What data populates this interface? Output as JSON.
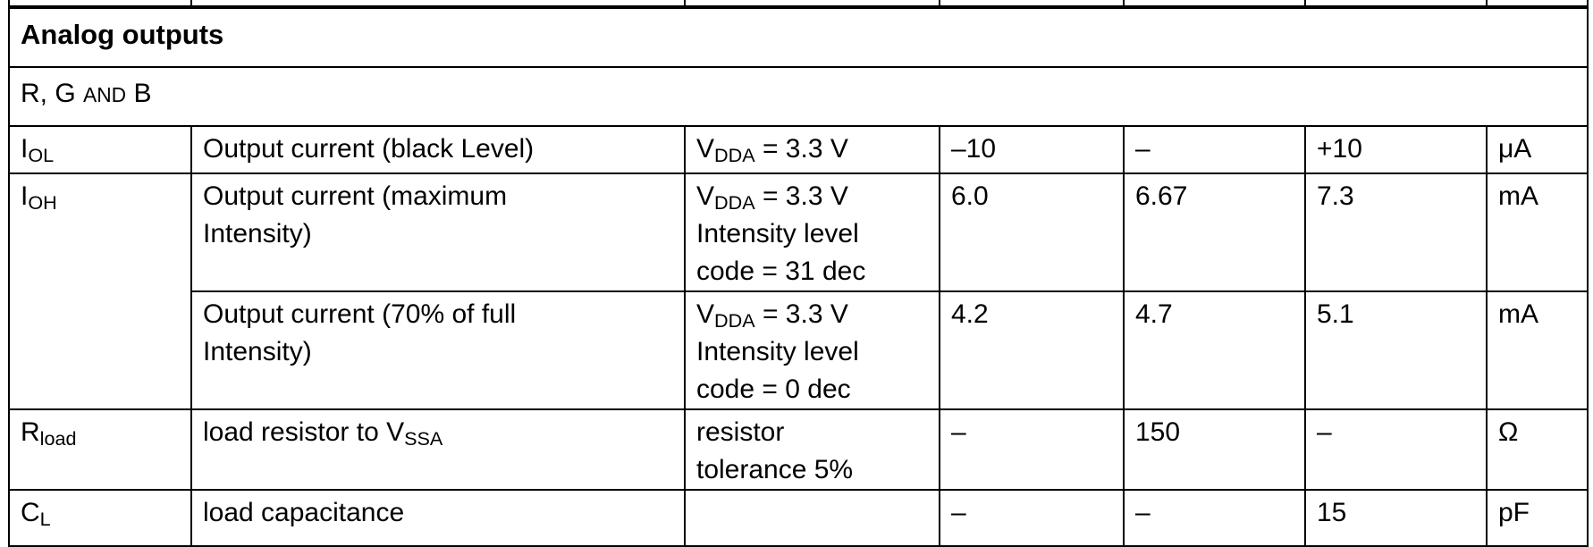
{
  "section": {
    "title": "Analog outputs"
  },
  "subsection": {
    "label": [
      [
        {
          "t": "R, G "
        },
        {
          "t": "AND",
          "sc": true
        },
        {
          "t": " B"
        }
      ]
    ]
  },
  "rows": {
    "iol": {
      "symbol": [
        [
          {
            "t": "I"
          },
          {
            "t": "OL",
            "sub": true
          }
        ]
      ],
      "parameter": [
        [
          {
            "t": "Output current (black Level)"
          }
        ]
      ],
      "conditions": [
        [
          {
            "t": "V"
          },
          {
            "t": "DDA",
            "sub": true
          },
          {
            "t": " = 3.3 V"
          }
        ]
      ],
      "min": "–10",
      "typ": "–",
      "max": "+10",
      "unit": "μA"
    },
    "ioh1": {
      "symbol": [
        [
          {
            "t": "I"
          },
          {
            "t": "OH",
            "sub": true
          }
        ]
      ],
      "parameter": [
        [
          {
            "t": "Output current (maximum"
          }
        ],
        [
          {
            "t": "Intensity)"
          }
        ]
      ],
      "conditions": [
        [
          {
            "t": "V"
          },
          {
            "t": "DDA",
            "sub": true
          },
          {
            "t": " = 3.3 V"
          }
        ],
        [
          {
            "t": "Intensity level"
          }
        ],
        [
          {
            "t": "code = 31 dec"
          }
        ]
      ],
      "min": "6.0",
      "typ": "6.67",
      "max": "7.3",
      "unit": "mA"
    },
    "ioh2": {
      "parameter": [
        [
          {
            "t": "Output current (70% of full"
          }
        ],
        [
          {
            "t": "Intensity)"
          }
        ]
      ],
      "conditions": [
        [
          {
            "t": "V"
          },
          {
            "t": "DDA",
            "sub": true
          },
          {
            "t": " = 3.3 V"
          }
        ],
        [
          {
            "t": "Intensity level"
          }
        ],
        [
          {
            "t": "code = 0 dec"
          }
        ]
      ],
      "min": "4.2",
      "typ": "4.7",
      "max": "5.1",
      "unit": "mA"
    },
    "rload": {
      "symbol": [
        [
          {
            "t": "R"
          },
          {
            "t": "load",
            "sub": true
          }
        ]
      ],
      "parameter": [
        [
          {
            "t": "load resistor to V"
          },
          {
            "t": "SSA",
            "sub": true
          }
        ]
      ],
      "conditions": [
        [
          {
            "t": "resistor"
          }
        ],
        [
          {
            "t": "tolerance 5%"
          }
        ]
      ],
      "min": "–",
      "typ": "150",
      "max": "–",
      "unit": "Ω"
    },
    "cl": {
      "symbol": [
        [
          {
            "t": "C"
          },
          {
            "t": "L",
            "sub": true
          }
        ]
      ],
      "parameter": [
        [
          {
            "t": "load capacitance"
          }
        ]
      ],
      "conditions": [],
      "min": "–",
      "typ": "–",
      "max": "15",
      "unit": "pF"
    }
  },
  "colors": {
    "text": "#000000",
    "border": "#000000",
    "background": "#ffffff"
  }
}
